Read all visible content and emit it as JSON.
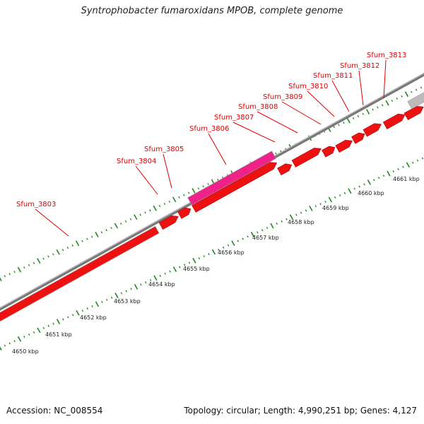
{
  "title": "Syntrophobacter fumaroxidans MPOB, complete genome",
  "accession_label": "Accession: NC_008554",
  "meta_label": "Topology: circular; Length: 4,990,251 bp; Genes: 4,127",
  "colors": {
    "background": "#ffffff",
    "gene": "#ee1111",
    "gene_dark": "#aa0000",
    "highlight": "#ee2288",
    "gray_feature": "#bbbbbb",
    "backbone": "#888888",
    "tick": "#228822",
    "label": "#dd0000"
  },
  "genes": [
    {
      "name": "Sfum_3803",
      "strand": "+"
    },
    {
      "name": "Sfum_3804",
      "strand": "+"
    },
    {
      "name": "Sfum_3805",
      "strand": "+"
    },
    {
      "name": "Sfum_3806",
      "strand": "+"
    },
    {
      "name": "Sfum_3807",
      "strand": "+"
    },
    {
      "name": "Sfum_3808",
      "strand": "+"
    },
    {
      "name": "Sfum_3809",
      "strand": "+"
    },
    {
      "name": "Sfum_3810",
      "strand": "+"
    },
    {
      "name": "Sfum_3811",
      "strand": "+"
    },
    {
      "name": "Sfum_3812",
      "strand": "+"
    },
    {
      "name": "Sfum_3813",
      "strand": "+"
    }
  ],
  "scale_labels": [
    "4650 kbp",
    "4651 kbp",
    "4652 kbp",
    "4653 kbp",
    "4654 kbp",
    "4655 kbp",
    "4656 kbp",
    "4657 kbp",
    "4658 kbp",
    "4659 kbp",
    "4660 kbp",
    "4661 kbp"
  ]
}
